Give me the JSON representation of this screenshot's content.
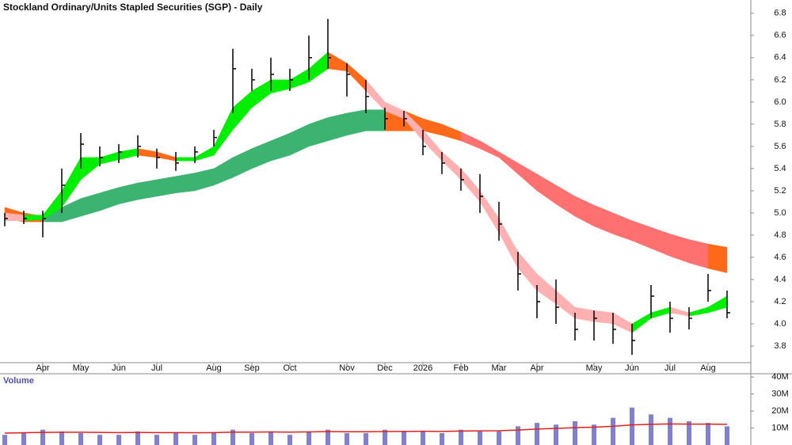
{
  "chart_data": {
    "type": "candlestick",
    "title": "Stockland Ordinary/Units Stapled Securities (SGP) - Daily",
    "categories": [
      null,
      null,
      "Apr",
      null,
      "May",
      null,
      "Jun",
      null,
      "Jul",
      null,
      null,
      "Aug",
      null,
      "Sep",
      null,
      "Oct",
      null,
      null,
      "Nov",
      null,
      "Dec",
      null,
      "2026",
      null,
      "Feb",
      null,
      "Mar",
      null,
      "Apr",
      null,
      null,
      "May",
      null,
      "Jun",
      null,
      "Jul",
      null,
      "Aug",
      null
    ],
    "high": [
      5.0,
      5.02,
      5.02,
      5.4,
      5.72,
      5.6,
      5.62,
      5.7,
      5.58,
      5.55,
      5.6,
      5.75,
      6.48,
      6.3,
      6.4,
      6.3,
      6.6,
      6.75,
      6.35,
      6.2,
      5.95,
      5.92,
      5.75,
      5.55,
      5.4,
      5.35,
      5.1,
      4.65,
      4.35,
      4.4,
      4.1,
      4.12,
      4.1,
      4.0,
      4.35,
      4.2,
      4.15,
      4.45,
      4.3
    ],
    "low": [
      4.88,
      4.9,
      4.78,
      5.0,
      5.4,
      5.42,
      5.45,
      5.5,
      5.4,
      5.38,
      5.45,
      5.6,
      5.9,
      6.1,
      6.1,
      6.1,
      6.2,
      6.3,
      6.05,
      5.9,
      5.75,
      5.78,
      5.52,
      5.35,
      5.2,
      5.0,
      4.75,
      4.3,
      4.05,
      4.0,
      3.85,
      3.85,
      3.82,
      3.72,
      4.05,
      3.92,
      3.95,
      4.2,
      4.05
    ],
    "close": [
      4.95,
      4.95,
      4.95,
      5.25,
      5.62,
      5.5,
      5.55,
      5.6,
      5.5,
      5.45,
      5.55,
      5.68,
      6.3,
      6.2,
      6.25,
      6.2,
      6.4,
      6.4,
      6.25,
      6.05,
      5.85,
      5.85,
      5.6,
      5.45,
      5.3,
      5.15,
      4.9,
      4.45,
      4.2,
      4.15,
      3.95,
      4.05,
      3.95,
      3.85,
      4.25,
      4.05,
      4.05,
      4.3,
      4.1
    ],
    "color": "#000000",
    "ylim": [
      3.65,
      6.92
    ],
    "yticks": [
      3.8,
      {
        "value": 4,
        "label": "4.0"
      },
      4.2,
      4.4,
      4.6,
      4.8,
      {
        "value": 5,
        "label": "5.0"
      },
      5.2,
      5.4,
      5.6,
      5.8,
      {
        "value": 6,
        "label": "6.0"
      },
      6.2,
      6.4,
      6.6,
      6.8
    ],
    "bands": [
      {
        "upper": [
          5.05,
          5.0,
          4.97,
          5.05,
          5.13,
          5.18,
          5.23,
          5.27,
          5.3,
          5.33,
          5.36,
          5.4,
          5.5,
          5.58,
          5.65,
          5.72,
          5.8,
          5.86,
          5.9,
          5.93,
          5.93,
          5.92,
          5.85,
          5.8,
          5.73,
          5.65,
          5.55,
          5.45,
          5.35,
          5.25,
          5.15,
          5.07,
          5.0,
          4.93,
          4.87,
          4.81,
          4.76,
          4.72,
          4.69
        ],
        "lower": [
          4.95,
          4.92,
          4.92,
          4.92,
          4.97,
          5.02,
          5.08,
          5.12,
          5.15,
          5.18,
          5.2,
          5.25,
          5.32,
          5.4,
          5.47,
          5.52,
          5.6,
          5.65,
          5.7,
          5.74,
          5.74,
          5.74,
          5.74,
          5.7,
          5.65,
          5.58,
          5.5,
          5.35,
          5.2,
          5.08,
          4.97,
          4.88,
          4.81,
          4.75,
          4.68,
          4.61,
          4.55,
          4.5,
          4.46
        ],
        "rise_color": "#3cb371",
        "fall_color": "#ff6a1a",
        "alt_color": "#ff7070"
      },
      {
        "upper": [
          5.0,
          4.98,
          4.98,
          5.2,
          5.5,
          5.5,
          5.55,
          5.58,
          5.55,
          5.5,
          5.5,
          5.6,
          5.95,
          6.1,
          6.2,
          6.2,
          6.3,
          6.45,
          6.35,
          6.2,
          6.0,
          5.92,
          5.75,
          5.55,
          5.4,
          5.2,
          4.95,
          4.65,
          4.45,
          4.3,
          4.15,
          4.12,
          4.1,
          4.0,
          4.1,
          4.15,
          4.1,
          4.15,
          4.25
        ],
        "lower": [
          4.93,
          4.93,
          4.94,
          5.05,
          5.3,
          5.44,
          5.48,
          5.52,
          5.5,
          5.47,
          5.47,
          5.52,
          5.75,
          5.95,
          6.08,
          6.12,
          6.18,
          6.3,
          6.28,
          6.1,
          5.92,
          5.85,
          5.65,
          5.47,
          5.3,
          5.1,
          4.82,
          4.5,
          4.3,
          4.18,
          4.05,
          4.02,
          4.0,
          3.92,
          4.05,
          4.1,
          4.07,
          4.1,
          4.15
        ],
        "rise_color": "#00ee00",
        "fall_color": "#ff6a1a",
        "alt_color": "#ffb0b0"
      }
    ],
    "volume": {
      "label": "Volume",
      "color": "#8080d0",
      "avg_color": "#e02020",
      "values": [
        6,
        7,
        9,
        8,
        7,
        6,
        6,
        8,
        6,
        7,
        6,
        7,
        9,
        7,
        8,
        6,
        8,
        9,
        7,
        7,
        9,
        8,
        8,
        7,
        9,
        8,
        8,
        11,
        13,
        12,
        14,
        12,
        16,
        22,
        18,
        16,
        14,
        13,
        11
      ],
      "avg": [
        7,
        7.2,
        7.4,
        7.5,
        7.5,
        7.4,
        7.3,
        7.4,
        7.3,
        7.3,
        7.2,
        7.3,
        7.6,
        7.6,
        7.7,
        7.6,
        7.7,
        7.9,
        7.8,
        7.8,
        7.9,
        8,
        8.1,
        8,
        8.2,
        8.3,
        8.4,
        8.8,
        9.4,
        9.8,
        10.2,
        10.5,
        11,
        11.8,
        12.2,
        12.4,
        12.3,
        12.3,
        12.2
      ],
      "ylim": [
        0,
        41
      ],
      "yticks": [
        {
          "value": 10,
          "label": "10M"
        },
        {
          "value": 20,
          "label": "20M"
        },
        {
          "value": 30,
          "label": "30M"
        },
        {
          "value": 40,
          "label": "40M"
        }
      ]
    }
  }
}
